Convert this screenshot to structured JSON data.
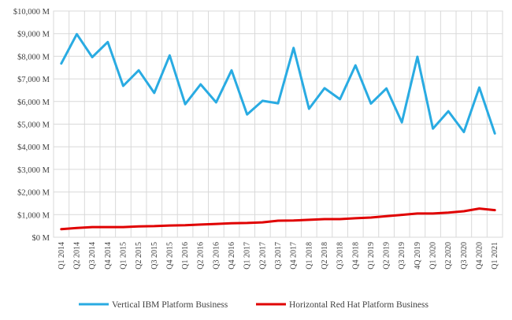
{
  "chart_data": {
    "type": "line",
    "title": "",
    "xlabel": "",
    "ylabel": "",
    "ylim": [
      0,
      10000
    ],
    "grid": true,
    "legend_position": "bottom",
    "y_ticks": [
      {
        "value": 0,
        "label": "$0 M"
      },
      {
        "value": 1000,
        "label": "$1,000 M"
      },
      {
        "value": 2000,
        "label": "$2,000 M"
      },
      {
        "value": 3000,
        "label": "$3,000 M"
      },
      {
        "value": 4000,
        "label": "$4,000 M"
      },
      {
        "value": 5000,
        "label": "$5,000 M"
      },
      {
        "value": 6000,
        "label": "$6,000 M"
      },
      {
        "value": 7000,
        "label": "$7,000 M"
      },
      {
        "value": 8000,
        "label": "$8,000 M"
      },
      {
        "value": 9000,
        "label": "$9,000 M"
      },
      {
        "value": 10000,
        "label": "$10,000 M"
      }
    ],
    "categories": [
      "Q1 2014",
      "Q2 2014",
      "Q3 2014",
      "Q4 2014",
      "Q1 2015",
      "Q2 2015",
      "Q3 2015",
      "Q4 2015",
      "Q1 2016",
      "Q2 2016",
      "Q3 2016",
      "Q4 2016",
      "Q1 2017",
      "Q2 2017",
      "Q3 2017",
      "Q4 2017",
      "Q1 2018",
      "Q2 2018",
      "Q3 2018",
      "Q4 2018",
      "Q1 2019",
      "Q2 2019",
      "Q3 2019",
      "4Q 2019",
      "Q1 2020",
      "Q2 2020",
      "Q3 2020",
      "Q4 2020",
      "Q1 2021"
    ],
    "series": [
      {
        "name": "Vertical IBM Platform Business",
        "color": "#29ABE2",
        "values": [
          7680,
          8980,
          7960,
          8630,
          6690,
          7380,
          6380,
          8040,
          5880,
          6760,
          5960,
          7380,
          5430,
          6030,
          5920,
          8370,
          5680,
          6590,
          6100,
          7600,
          5910,
          6580,
          5080,
          7980,
          4800,
          5570,
          4650,
          6620,
          4590
        ]
      },
      {
        "name": "Horizontal Red Hat Platform Business",
        "color": "#E00000",
        "values": [
          360,
          410,
          450,
          450,
          450,
          480,
          490,
          520,
          530,
          560,
          590,
          620,
          630,
          660,
          730,
          740,
          770,
          800,
          800,
          840,
          870,
          930,
          990,
          1050,
          1050,
          1090,
          1150,
          1270,
          1200
        ]
      }
    ]
  }
}
